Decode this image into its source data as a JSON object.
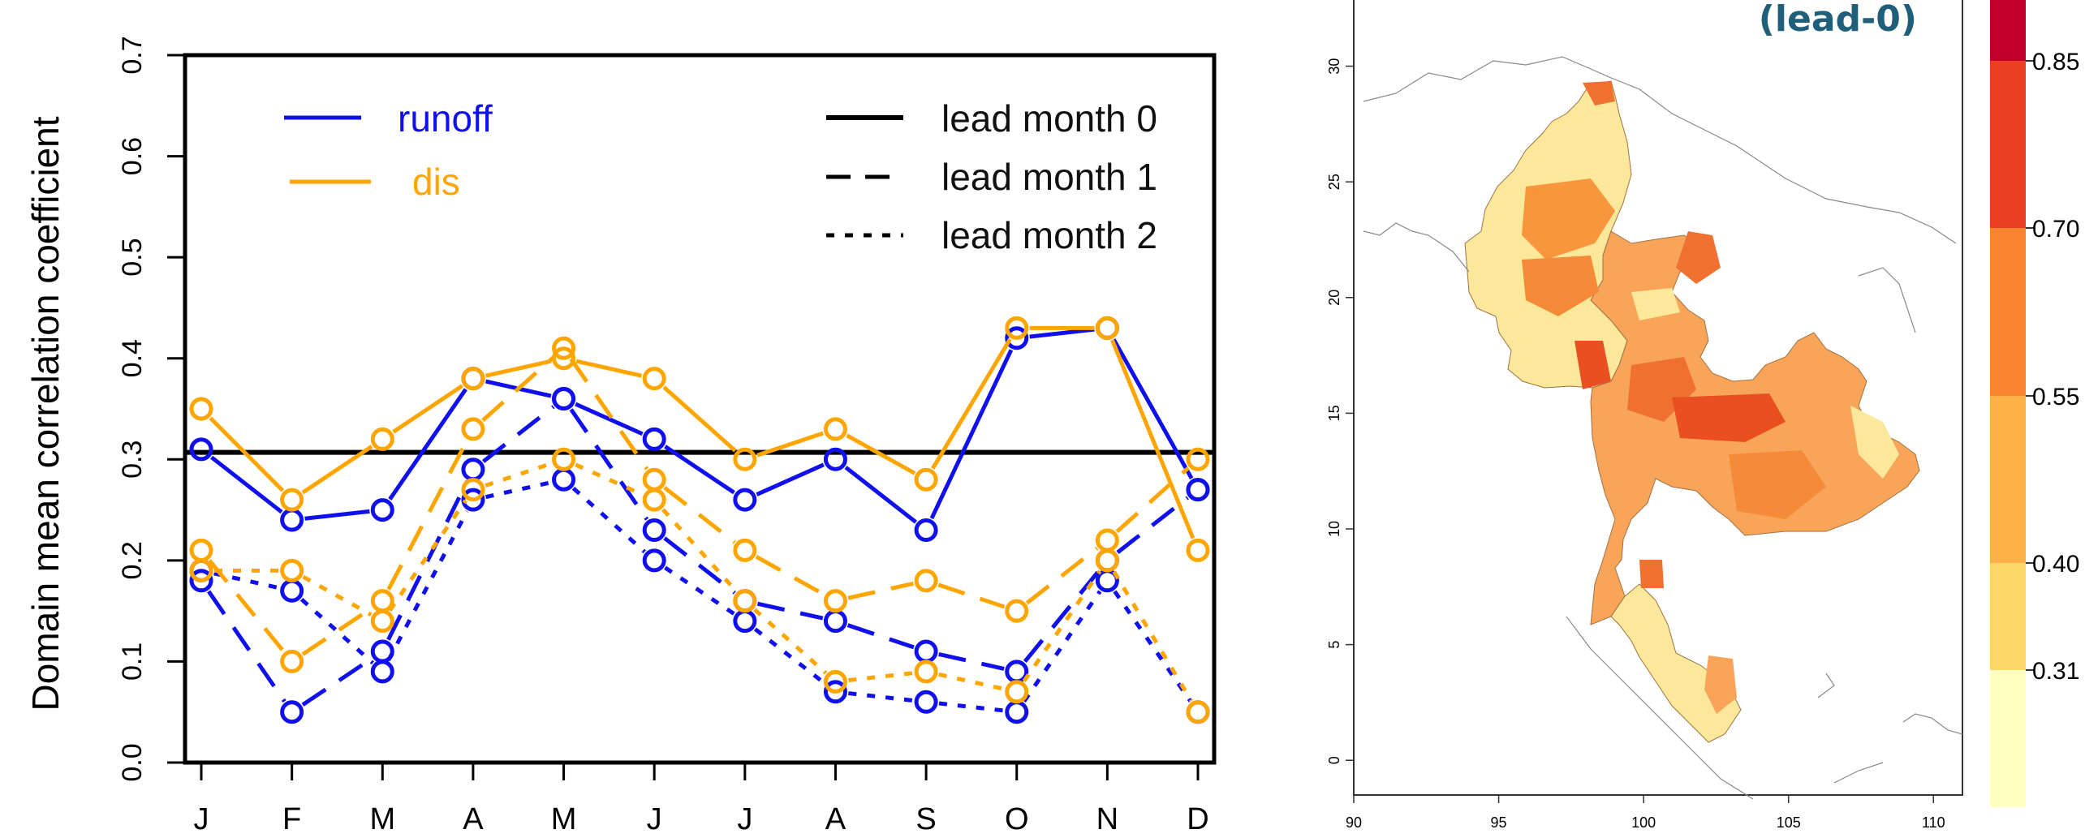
{
  "chart_data": [
    {
      "type": "line",
      "ylabel": "Domain mean correlation coefficient",
      "xlabel": "",
      "categories": [
        "J",
        "F",
        "M",
        "A",
        "M",
        "J",
        "J",
        "A",
        "S",
        "O",
        "N",
        "D"
      ],
      "ylim": [
        0,
        0.7
      ],
      "yticks": [
        "0.0",
        "0.1",
        "0.2",
        "0.3",
        "0.4",
        "0.5",
        "0.6",
        "0.7"
      ],
      "reference_line": {
        "value": 0.307,
        "style": "solid",
        "color": "#000000"
      },
      "legend": {
        "variables": [
          {
            "name": "runoff",
            "color": "#1010ee"
          },
          {
            "name": "dis",
            "color": "#ffa500"
          }
        ],
        "leads": [
          {
            "name": "lead month 0",
            "style": "solid"
          },
          {
            "name": "lead month 1",
            "style": "dashed"
          },
          {
            "name": "lead month 2",
            "style": "dotted"
          }
        ]
      },
      "series": [
        {
          "variable": "runoff",
          "lead": 0,
          "color": "#1010ee",
          "values": [
            0.31,
            0.24,
            0.25,
            0.38,
            0.36,
            0.32,
            0.26,
            0.3,
            0.23,
            0.42,
            0.43,
            0.27
          ]
        },
        {
          "variable": "runoff",
          "lead": 1,
          "color": "#1010ee",
          "values": [
            0.18,
            0.05,
            0.11,
            0.29,
            0.36,
            0.23,
            0.16,
            0.14,
            0.11,
            0.09,
            0.2,
            0.27
          ]
        },
        {
          "variable": "runoff",
          "lead": 2,
          "color": "#1010ee",
          "values": [
            0.19,
            0.17,
            0.09,
            0.26,
            0.28,
            0.2,
            0.14,
            0.07,
            0.06,
            0.05,
            0.18,
            0.05
          ]
        },
        {
          "variable": "dis",
          "lead": 0,
          "color": "#ffa500",
          "values": [
            0.35,
            0.26,
            0.32,
            0.38,
            0.4,
            0.38,
            0.3,
            0.33,
            0.28,
            0.43,
            0.43,
            0.21
          ]
        },
        {
          "variable": "dis",
          "lead": 1,
          "color": "#ffa500",
          "values": [
            0.21,
            0.1,
            0.16,
            0.33,
            0.41,
            0.28,
            0.21,
            0.16,
            0.18,
            0.15,
            0.22,
            0.3
          ]
        },
        {
          "variable": "dis",
          "lead": 2,
          "color": "#ffa500",
          "values": [
            0.19,
            0.19,
            0.14,
            0.27,
            0.3,
            0.26,
            0.16,
            0.08,
            0.09,
            0.07,
            0.2,
            0.05
          ]
        }
      ]
    },
    {
      "type": "heatmap",
      "title": "(lead-0)",
      "xticks": [
        "90",
        "95",
        "100",
        "105",
        "110"
      ],
      "yticks": [
        "0",
        "5",
        "10",
        "15",
        "20",
        "25",
        "30"
      ],
      "xlim": [
        90,
        111
      ],
      "ylim": [
        -1.5,
        33
      ],
      "colorbar": {
        "ticks": [
          "0.31",
          "0.40",
          "0.55",
          "0.70",
          "0.85"
        ],
        "colors": [
          "#ffffc0",
          "#fdd76a",
          "#fdaf48",
          "#f88430",
          "#ea3f21",
          "#c0002a"
        ]
      }
    }
  ]
}
